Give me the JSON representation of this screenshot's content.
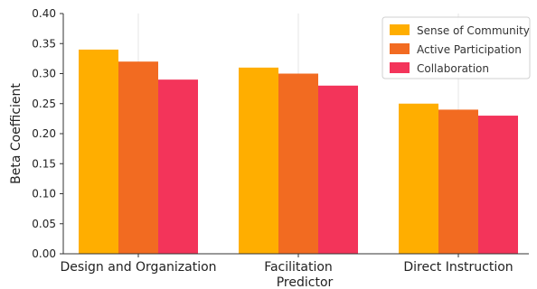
{
  "chart_data": {
    "type": "bar",
    "title": "",
    "xlabel": "Predictor",
    "ylabel": "Beta Coefficient",
    "categories": [
      "Design and Organization",
      "Facilitation",
      "Direct Instruction"
    ],
    "series": [
      {
        "name": "Sense of Community",
        "values": [
          0.34,
          0.31,
          0.25
        ],
        "color": "#FFAE00"
      },
      {
        "name": "Active Participation",
        "values": [
          0.32,
          0.3,
          0.24
        ],
        "color": "#F26B21"
      },
      {
        "name": "Collaboration",
        "values": [
          0.29,
          0.28,
          0.23
        ],
        "color": "#F3345A"
      }
    ],
    "ylim": [
      0,
      0.4
    ],
    "yticks": [
      "0.00",
      "0.05",
      "0.10",
      "0.15",
      "0.20",
      "0.25",
      "0.30",
      "0.35",
      "0.40"
    ],
    "grid": "vertical",
    "legend_position": "top-right"
  }
}
